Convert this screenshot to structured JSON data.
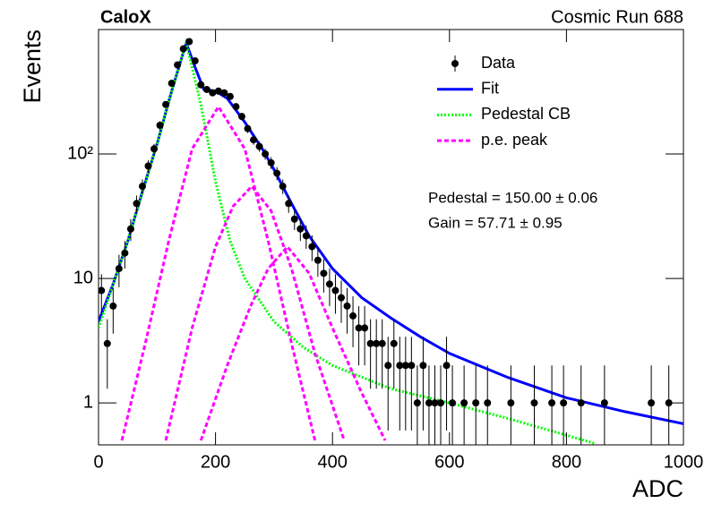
{
  "chart_data": {
    "type": "histogram-fit",
    "title": "CaloX",
    "subtitle": "Cosmic Run 688",
    "x_label": "ADC",
    "y_label": "Events",
    "xlim": [
      0,
      1000
    ],
    "ylim": [
      0.46,
      1000
    ],
    "ylog": true,
    "grid": false,
    "legend_position": "top-right",
    "xticks": [
      0,
      200,
      400,
      600,
      800,
      1000
    ],
    "yticks": [
      1,
      10,
      {
        "value": 100,
        "label": "10²"
      }
    ],
    "annotations": [
      "Pedestal = 150.00 ± 0.06",
      "Gain = 57.71 ± 0.95"
    ],
    "data": {
      "name": "Data",
      "color": "#000000",
      "x": [
        5,
        15,
        25,
        35,
        45,
        55,
        65,
        75,
        85,
        95,
        105,
        115,
        125,
        135,
        145,
        155,
        165,
        175,
        185,
        195,
        205,
        215,
        225,
        235,
        245,
        255,
        265,
        275,
        285,
        295,
        305,
        315,
        325,
        335,
        345,
        355,
        365,
        375,
        385,
        395,
        405,
        415,
        425,
        435,
        445,
        455,
        465,
        475,
        485,
        495,
        505,
        515,
        525,
        535,
        545,
        555,
        565,
        575,
        585,
        595,
        605,
        625,
        645,
        665,
        705,
        745,
        775,
        795,
        825,
        865,
        945,
        975
      ],
      "values": [
        8,
        3,
        6,
        12,
        16,
        25,
        40,
        55,
        80,
        110,
        170,
        250,
        370,
        520,
        700,
        800,
        560,
        360,
        330,
        310,
        320,
        310,
        290,
        240,
        200,
        160,
        130,
        115,
        100,
        85,
        70,
        55,
        40,
        30,
        25,
        22,
        18,
        14,
        11,
        9,
        8,
        7,
        6,
        5,
        4,
        4,
        3,
        3,
        3,
        2,
        3,
        2,
        2,
        2,
        1,
        2,
        1,
        1,
        1,
        2,
        1,
        1,
        1,
        1,
        1,
        1,
        1,
        1,
        1,
        1,
        1,
        1
      ],
      "errors": [
        2.8,
        1.7,
        2.4,
        3.5,
        4,
        5,
        6.3,
        7.4,
        8.9,
        10.5,
        13,
        15.8,
        19.2,
        22.8,
        26.5,
        28.3,
        23.7,
        19,
        18.2,
        17.6,
        17.9,
        17.6,
        17,
        15.5,
        14.1,
        12.6,
        11.4,
        10.7,
        10,
        9.2,
        8.4,
        7.4,
        6.3,
        5.5,
        5,
        4.7,
        4.2,
        3.7,
        3.3,
        3,
        2.8,
        2.6,
        2.4,
        2.2,
        2,
        2,
        1.7,
        1.7,
        1.7,
        1.4,
        1.7,
        1.4,
        1.4,
        1.4,
        1,
        1.4,
        1,
        1,
        1,
        1.4,
        1,
        1,
        1,
        1,
        1,
        1,
        1,
        1,
        1,
        1,
        1,
        1
      ]
    },
    "series": [
      {
        "name": "Fit",
        "color": "#0000ff",
        "style": "solid",
        "x": [
          0,
          25,
          50,
          75,
          100,
          125,
          150,
          165,
          180,
          200,
          220,
          250,
          280,
          300,
          330,
          360,
          400,
          450,
          500,
          550,
          600,
          700,
          800,
          900,
          1000
        ],
        "values": [
          4.5,
          9,
          20,
          50,
          120,
          320,
          780,
          500,
          330,
          320,
          280,
          180,
          110,
          75,
          40,
          22,
          12,
          7,
          4.8,
          3.4,
          2.5,
          1.6,
          1.1,
          0.85,
          0.68
        ]
      },
      {
        "name": "Pedestal CB",
        "color": "#00ff00",
        "style": "dotted",
        "x": [
          0,
          50,
          100,
          125,
          150,
          175,
          200,
          225,
          250,
          300,
          350,
          400,
          500,
          600,
          700,
          800,
          850
        ],
        "values": [
          4,
          20,
          120,
          320,
          780,
          250,
          60,
          20,
          10,
          4.5,
          2.8,
          2,
          1.3,
          1,
          0.75,
          0.55,
          0.47
        ]
      },
      {
        "name": "p.e. peak",
        "color": "#ff00ff",
        "style": "dashed",
        "pieces": [
          {
            "x": [
              40,
              80,
              120,
              160,
              205,
              250,
              290,
              330,
              370
            ],
            "values": [
              0.5,
              3,
              20,
              110,
              240,
              110,
              20,
              3,
              0.5
            ]
          },
          {
            "x": [
              115,
              160,
              200,
              230,
              262,
              295,
              330,
              370,
              420
            ],
            "values": [
              0.5,
              4,
              18,
              38,
              55,
              35,
              12,
              2.5,
              0.5
            ]
          },
          {
            "x": [
              175,
              220,
              260,
              290,
              323,
              360,
              400,
              450,
              490
            ],
            "values": [
              0.5,
              2,
              6,
              12,
              18,
              11,
              4,
              1.2,
              0.5
            ]
          }
        ]
      }
    ]
  }
}
